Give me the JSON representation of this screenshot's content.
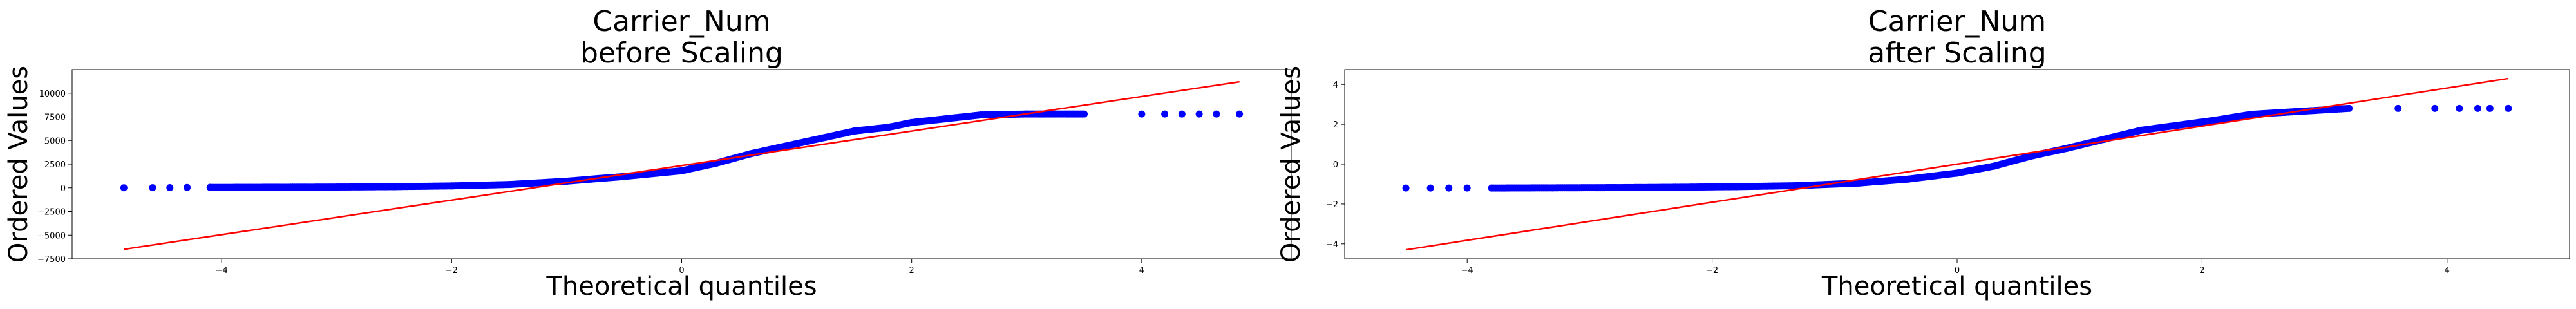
{
  "chart_data": [
    {
      "type": "scatter",
      "title_line1": "Carrier_Num",
      "title_line2": "before Scaling",
      "xlabel": "Theoretical quantiles",
      "ylabel": "Ordered Values",
      "xlim": [
        -5.3,
        5.3
      ],
      "ylim": [
        -7500,
        12500
      ],
      "xticks": [
        -4,
        -2,
        0,
        2,
        4
      ],
      "yticks": [
        -7500,
        -5000,
        -2500,
        0,
        2500,
        5000,
        7500,
        10000
      ],
      "series": [
        {
          "marker_color": "#0000ff",
          "x": [
            -4.85,
            -4.6,
            -4.45,
            -4.3,
            -4.1,
            -3.5,
            -3.0,
            -2.5,
            -2.0,
            -1.5,
            -1.0,
            -0.5,
            0.0,
            0.3,
            0.6,
            0.9,
            1.2,
            1.5,
            1.8,
            2.0,
            2.3,
            2.6,
            3.0,
            3.5,
            4.0,
            4.2,
            4.35,
            4.5,
            4.65,
            4.85
          ],
          "y": [
            0,
            10,
            20,
            30,
            40,
            60,
            80,
            120,
            200,
            350,
            700,
            1200,
            1800,
            2600,
            3600,
            4400,
            5200,
            6000,
            6400,
            6900,
            7300,
            7700,
            7800,
            7800,
            7800,
            7800,
            7800,
            7800,
            7800,
            7800
          ]
        }
      ],
      "fit_line": {
        "color": "#ff0000",
        "x": [
          -4.85,
          4.85
        ],
        "y": [
          -6500,
          11200
        ]
      }
    },
    {
      "type": "scatter",
      "title_line1": "Carrier_Num",
      "title_line2": "after Scaling",
      "xlabel": "Theoretical quantiles",
      "ylabel": "Ordered Values",
      "xlim": [
        -5.0,
        5.0
      ],
      "ylim": [
        -4.75,
        4.75
      ],
      "xticks": [
        -4,
        -2,
        0,
        2,
        4
      ],
      "yticks": [
        -4,
        -2,
        0,
        2,
        4
      ],
      "series": [
        {
          "marker_color": "#0000ff",
          "x": [
            -4.5,
            -4.3,
            -4.15,
            -4.0,
            -3.8,
            -3.3,
            -2.8,
            -2.3,
            -1.8,
            -1.3,
            -0.8,
            -0.4,
            0.0,
            0.3,
            0.6,
            0.9,
            1.2,
            1.5,
            1.8,
            2.1,
            2.4,
            2.8,
            3.2,
            3.6,
            3.9,
            4.1,
            4.25,
            4.35,
            4.5
          ],
          "y": [
            -1.2,
            -1.2,
            -1.2,
            -1.2,
            -1.2,
            -1.19,
            -1.18,
            -1.16,
            -1.13,
            -1.08,
            -0.95,
            -0.75,
            -0.45,
            -0.1,
            0.4,
            0.8,
            1.25,
            1.7,
            1.95,
            2.2,
            2.5,
            2.65,
            2.8,
            2.8,
            2.8,
            2.8,
            2.8,
            2.8,
            2.8
          ]
        }
      ],
      "fit_line": {
        "color": "#ff0000",
        "x": [
          -4.5,
          4.5
        ],
        "y": [
          -4.3,
          4.3
        ]
      }
    }
  ]
}
